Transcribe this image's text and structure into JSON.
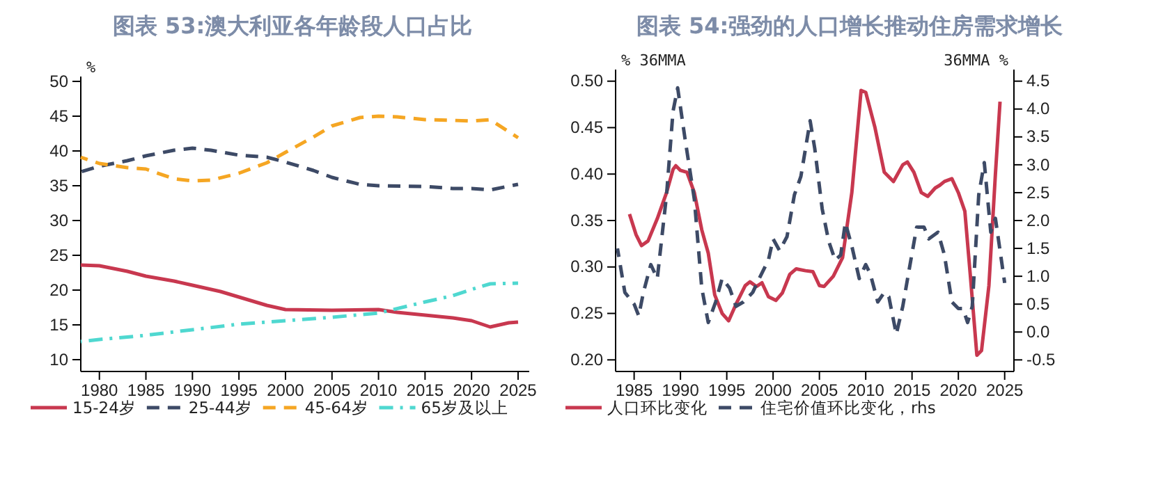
{
  "chart_data": [
    {
      "type": "line",
      "title": "图表 53:澳大利亚各年龄段人口占比",
      "ylabel": "%",
      "xlim": [
        1978,
        2026.2
      ],
      "ylim": [
        8.3,
        50.7
      ],
      "xticks": [
        1980,
        1985,
        1990,
        1995,
        2000,
        2005,
        2010,
        2015,
        2020,
        2025
      ],
      "yticks": [
        10,
        15,
        20,
        25,
        30,
        35,
        40,
        45,
        50
      ],
      "grid": false,
      "legend": "bottom",
      "series": [
        {
          "name": "15-24岁",
          "color": "#c8384f",
          "line_style": "solid",
          "x": [
            1978,
            1980,
            1983,
            1985,
            1988,
            1990,
            1993,
            1995,
            1998,
            2000,
            2005,
            2010,
            2012,
            2015,
            2018,
            2020,
            2022,
            2024,
            2025
          ],
          "values": [
            23.6,
            23.5,
            22.7,
            22.0,
            21.3,
            20.7,
            19.8,
            19.0,
            17.8,
            17.2,
            17.1,
            17.2,
            16.8,
            16.4,
            16.0,
            15.6,
            14.7,
            15.3,
            15.4
          ]
        },
        {
          "name": "25-44岁",
          "color": "#3d4a66",
          "line_style": "dashed",
          "x": [
            1978,
            1980,
            1983,
            1985,
            1988,
            1990,
            1992,
            1995,
            1998,
            2000,
            2003,
            2005,
            2008,
            2010,
            2015,
            2018,
            2020,
            2022,
            2025
          ],
          "values": [
            37.0,
            37.8,
            38.6,
            39.3,
            40.1,
            40.4,
            40.1,
            39.4,
            39.1,
            38.4,
            37.2,
            36.2,
            35.2,
            35.0,
            34.9,
            34.6,
            34.6,
            34.4,
            35.2
          ]
        },
        {
          "name": "45-64岁",
          "color": "#f5a623",
          "line_style": "dashed",
          "x": [
            1978,
            1980,
            1983,
            1985,
            1988,
            1990,
            1992,
            1995,
            1998,
            2000,
            2003,
            2005,
            2008,
            2010,
            2012,
            2015,
            2018,
            2020,
            2022,
            2025
          ],
          "values": [
            39.1,
            38.2,
            37.6,
            37.4,
            36.0,
            35.7,
            35.8,
            36.8,
            38.3,
            39.8,
            42.0,
            43.6,
            44.8,
            45.0,
            44.9,
            44.5,
            44.4,
            44.3,
            44.5,
            41.9
          ]
        },
        {
          "name": "65岁及以上",
          "color": "#4fd8d0",
          "line_style": "dotted",
          "x": [
            1978,
            1980,
            1985,
            1990,
            1995,
            2000,
            2005,
            2010,
            2015,
            2018,
            2020,
            2022,
            2025
          ],
          "values": [
            12.6,
            12.9,
            13.5,
            14.3,
            15.1,
            15.6,
            16.1,
            16.7,
            18.3,
            19.2,
            20.1,
            20.9,
            21.0
          ]
        }
      ]
    },
    {
      "type": "line",
      "title": "图表 54:强劲的人口增长推动住房需求增长",
      "ylabel": "% 36MMA",
      "y2label": "36MMA %",
      "xlim": [
        1983,
        2026
      ],
      "ylim": [
        0.1875,
        0.5125
      ],
      "y2lim": [
        -0.708,
        4.708
      ],
      "xticks": [
        1985,
        1990,
        1995,
        2000,
        2005,
        2010,
        2015,
        2020,
        2025
      ],
      "yticks": [
        {
          "value": 0.2,
          "label": "0.20"
        },
        {
          "value": 0.25,
          "label": "0.25"
        },
        {
          "value": 0.3,
          "label": "0.30"
        },
        {
          "value": 0.35,
          "label": "0.35"
        },
        {
          "value": 0.4,
          "label": "0.40"
        },
        {
          "value": 0.45,
          "label": "0.45"
        },
        {
          "value": 0.5,
          "label": "0.50"
        }
      ],
      "y2ticks": [
        -0.5,
        {
          "value": 0,
          "label": "0.0"
        },
        0.5,
        {
          "value": 1,
          "label": "1.0"
        },
        1.5,
        {
          "value": 2,
          "label": "2.0"
        },
        2.5,
        {
          "value": 3,
          "label": "3.0"
        },
        3.5,
        {
          "value": 4,
          "label": "4.0"
        },
        4.5
      ],
      "grid": false,
      "legend": "bottom",
      "series": [
        {
          "name": "人口环比变化",
          "color": "#c8384f",
          "line_style": "solid",
          "x": [
            1984.5,
            1985.2,
            1985.8,
            1986.5,
            1987.5,
            1988.5,
            1989.2,
            1989.5,
            1990,
            1990.7,
            1991.5,
            1992.3,
            1993,
            1993.7,
            1994.5,
            1995.2,
            1996,
            1997,
            1997.5,
            1998.2,
            1998.8,
            1999.5,
            2000.3,
            2001,
            2001.8,
            2002.5,
            2003.5,
            2004.3,
            2005,
            2005.5,
            2006.5,
            2007.5,
            2008.5,
            2009.5,
            2010,
            2011,
            2012,
            2013,
            2014,
            2014.5,
            2015.2,
            2016,
            2016.7,
            2017.5,
            2018,
            2018.5,
            2019.3,
            2020,
            2020.7,
            2021.3,
            2022,
            2022.5,
            2023.3,
            2024,
            2024.5
          ],
          "values": [
            0.357,
            0.335,
            0.323,
            0.328,
            0.352,
            0.38,
            0.405,
            0.409,
            0.404,
            0.402,
            0.38,
            0.34,
            0.315,
            0.27,
            0.25,
            0.242,
            0.26,
            0.28,
            0.284,
            0.279,
            0.283,
            0.268,
            0.264,
            0.272,
            0.292,
            0.298,
            0.296,
            0.295,
            0.28,
            0.279,
            0.29,
            0.31,
            0.38,
            0.49,
            0.488,
            0.45,
            0.402,
            0.392,
            0.41,
            0.413,
            0.402,
            0.38,
            0.376,
            0.385,
            0.388,
            0.392,
            0.395,
            0.38,
            0.36,
            0.29,
            0.205,
            0.21,
            0.28,
            0.4,
            0.478
          ]
        },
        {
          "name": "住宅价值环比变化，rhs",
          "color": "#3d4a66",
          "line_style": "dashed",
          "axis": "y2",
          "x": [
            1983.2,
            1984,
            1985,
            1985.5,
            1986,
            1986.8,
            1987.5,
            1988.5,
            1989.2,
            1989.7,
            1990.5,
            1991.5,
            1992.3,
            1993,
            1993.8,
            1994.5,
            1995.3,
            1996,
            1996.8,
            1997.8,
            1998.5,
            1999.5,
            2000,
            2000.7,
            2001.5,
            2002.3,
            2003,
            2004,
            2004.5,
            2005.3,
            2006,
            2006.7,
            2007.3,
            2007.8,
            2008.5,
            2009.3,
            2010,
            2010.5,
            2011.3,
            2012,
            2012.5,
            2013.3,
            2014,
            2014.7,
            2015.5,
            2016.3,
            2016.8,
            2017.8,
            2018.5,
            2019.3,
            2020,
            2020.5,
            2021,
            2021.5,
            2022.2,
            2022.8,
            2023.5,
            2024,
            2025
          ],
          "values": [
            1.5,
            0.71,
            0.5,
            0.29,
            0.71,
            1.21,
            0.96,
            2.46,
            3.96,
            4.38,
            3.46,
            2.38,
            0.79,
            0.17,
            0.54,
            0.96,
            0.79,
            0.46,
            0.54,
            0.71,
            0.96,
            1.29,
            1.67,
            1.46,
            1.71,
            2.46,
            2.79,
            3.79,
            3.29,
            2.21,
            1.63,
            1.29,
            1.38,
            1.96,
            1.54,
            0.96,
            1.21,
            1.04,
            0.54,
            0.71,
            0.63,
            -0.04,
            0.46,
            1.13,
            1.88,
            1.88,
            1.67,
            1.79,
            1.38,
            0.54,
            0.42,
            0.42,
            0.17,
            0.46,
            2.46,
            3.04,
            1.79,
            2.04,
            0.88
          ]
        }
      ]
    }
  ]
}
